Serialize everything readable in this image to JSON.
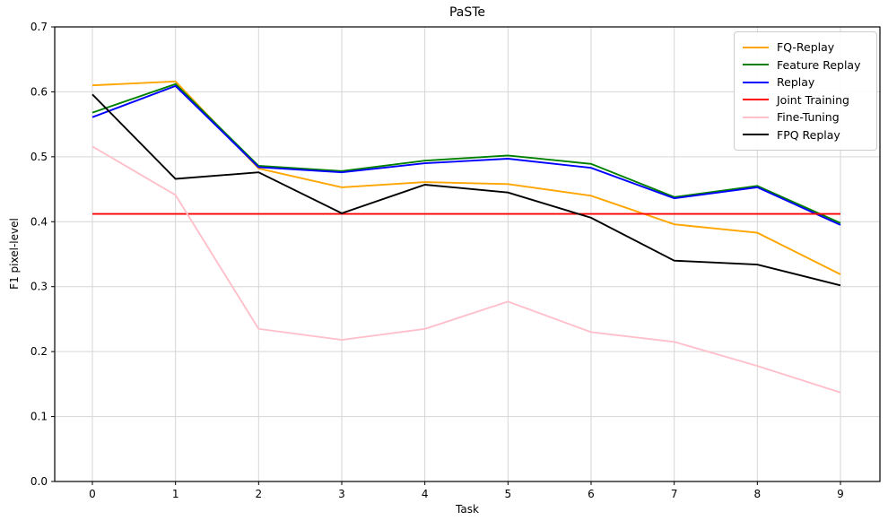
{
  "title": "PaSTe",
  "chart_data": {
    "type": "line",
    "title": "PaSTe",
    "xlabel": "Task",
    "ylabel": "F1 pixel-level",
    "x": [
      0,
      1,
      2,
      3,
      4,
      5,
      6,
      7,
      8,
      9
    ],
    "x_tick_labels": [
      "0",
      "1",
      "2",
      "3",
      "4",
      "5",
      "6",
      "7",
      "8",
      "9"
    ],
    "y_tick_labels": [
      "0.0",
      "0.1",
      "0.2",
      "0.3",
      "0.4",
      "0.5",
      "0.6",
      "0.7"
    ],
    "ylim": [
      0.0,
      0.7
    ],
    "grid": true,
    "grid_color": "#d6d6d6",
    "legend_position": "upper right",
    "series": [
      {
        "name": "FQ-Replay",
        "color": "#FFA500",
        "values": [
          0.61,
          0.616,
          0.482,
          0.453,
          0.461,
          0.458,
          0.44,
          0.396,
          0.383,
          0.319
        ]
      },
      {
        "name": "Feature Replay",
        "color": "#008000",
        "values": [
          0.568,
          0.612,
          0.486,
          0.478,
          0.494,
          0.502,
          0.489,
          0.438,
          0.455,
          0.398
        ]
      },
      {
        "name": "Replay",
        "color": "#0000FF",
        "values": [
          0.561,
          0.609,
          0.484,
          0.476,
          0.49,
          0.497,
          0.483,
          0.436,
          0.453,
          0.395
        ]
      },
      {
        "name": "Joint Training",
        "color": "#FF0000",
        "values": [
          0.412,
          0.412,
          0.412,
          0.412,
          0.412,
          0.412,
          0.412,
          0.412,
          0.412,
          0.412
        ]
      },
      {
        "name": "Fine-Tuning",
        "color": "#FFC0CB",
        "values": [
          0.516,
          0.441,
          0.235,
          0.218,
          0.235,
          0.277,
          0.23,
          0.215,
          0.178,
          0.137
        ]
      },
      {
        "name": "FPQ Replay",
        "color": "#000000",
        "values": [
          0.596,
          0.466,
          0.476,
          0.413,
          0.457,
          0.445,
          0.406,
          0.34,
          0.334,
          0.302
        ]
      }
    ]
  }
}
